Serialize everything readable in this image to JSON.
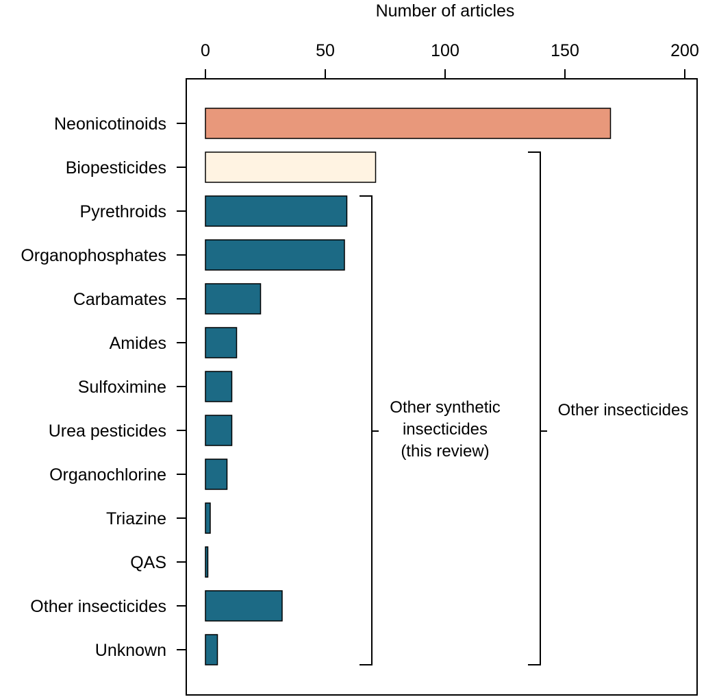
{
  "chart_data": {
    "type": "bar",
    "orientation": "horizontal",
    "xlabel": "Number of articles",
    "xlim": [
      0,
      200
    ],
    "xticks": [
      0,
      50,
      100,
      150,
      200
    ],
    "categories": [
      "Neonicotinoids",
      "Biopesticides",
      "Pyrethroids",
      "Organophosphates",
      "Carbamates",
      "Amides",
      "Sulfoximine",
      "Urea pesticides",
      "Organochlorine",
      "Triazine",
      "QAS",
      "Other insecticides",
      "Unknown"
    ],
    "values": [
      169,
      71,
      59,
      58,
      23,
      13,
      11,
      11,
      9,
      2,
      1,
      32,
      5
    ],
    "bar_colors": [
      "#e8987b",
      "#fff3e2",
      "#1c6a85",
      "#1c6a85",
      "#1c6a85",
      "#1c6a85",
      "#1c6a85",
      "#1c6a85",
      "#1c6a85",
      "#1c6a85",
      "#1c6a85",
      "#1c6a85",
      "#1c6a85"
    ],
    "grid": false,
    "brackets": [
      {
        "label_lines": [
          "Other synthetic",
          "insecticides",
          "(this review)"
        ],
        "from": "Pyrethroids",
        "to": "Unknown"
      },
      {
        "label_lines": [
          "Other insecticides"
        ],
        "from": "Biopesticides",
        "to": "Unknown"
      }
    ]
  }
}
